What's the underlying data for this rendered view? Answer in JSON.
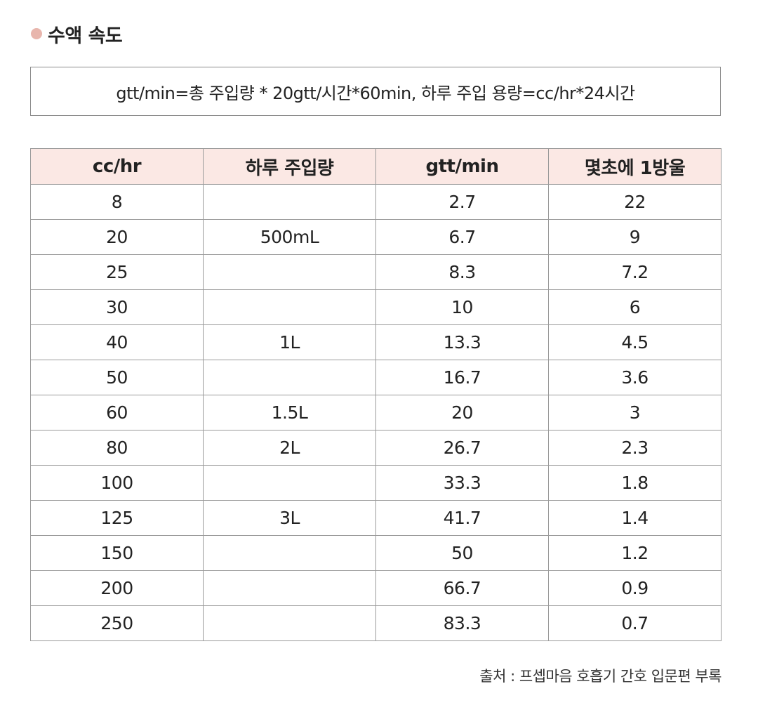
{
  "header": {
    "title": "수액 속도"
  },
  "formula": "gtt/min=총 주입량 * 20gtt/시간*60min, 하루 주입 용량=cc/hr*24시간",
  "table": {
    "columns": [
      "cc/hr",
      "하루 주입량",
      "gtt/min",
      "몇초에 1방울"
    ],
    "rows": [
      [
        "8",
        "",
        "2.7",
        "22"
      ],
      [
        "20",
        "500mL",
        "6.7",
        "9"
      ],
      [
        "25",
        "",
        "8.3",
        "7.2"
      ],
      [
        "30",
        "",
        "10",
        "6"
      ],
      [
        "40",
        "1L",
        "13.3",
        "4.5"
      ],
      [
        "50",
        "",
        "16.7",
        "3.6"
      ],
      [
        "60",
        "1.5L",
        "20",
        "3"
      ],
      [
        "80",
        "2L",
        "26.7",
        "2.3"
      ],
      [
        "100",
        "",
        "33.3",
        "1.8"
      ],
      [
        "125",
        "3L",
        "41.7",
        "1.4"
      ],
      [
        "150",
        "",
        "50",
        "1.2"
      ],
      [
        "200",
        "",
        "66.7",
        "0.9"
      ],
      [
        "250",
        "",
        "83.3",
        "0.7"
      ]
    ]
  },
  "source": "출처 : 프셉마음 호흡기 간호 입문편 부록",
  "colors": {
    "accent_dot": "#e8b6ad",
    "header_bg": "#fbe8e4",
    "border": "#9a9a9a"
  }
}
